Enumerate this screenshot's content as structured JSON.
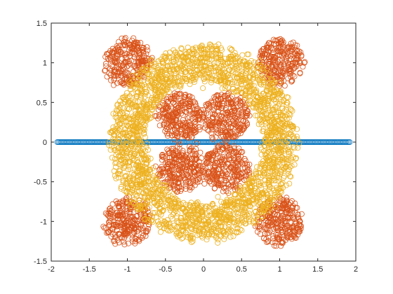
{
  "chart_data": {
    "type": "scatter",
    "title": "",
    "xlabel": "",
    "ylabel": "",
    "xlim": [
      -2,
      2
    ],
    "ylim": [
      -1.5,
      1.5
    ],
    "xticks": [
      -2,
      -1.5,
      -1,
      -0.5,
      0,
      0.5,
      1,
      1.5,
      2
    ],
    "yticks": [
      -1.5,
      -1,
      -0.5,
      0,
      0.5,
      1,
      1.5
    ],
    "xtick_labels": [
      "-2",
      "-1.5",
      "-1",
      "-0.5",
      "0",
      "0.5",
      "1",
      "1.5",
      "2"
    ],
    "ytick_labels": [
      "-1.5",
      "-1",
      "-0.5",
      "0",
      "0.5",
      "1",
      "1.5"
    ],
    "grid": false,
    "legend": "none",
    "marker": "open-circle",
    "series": [
      {
        "color": "#0072BD",
        "shape": "line-segment",
        "x_range": [
          -1.92,
          1.92
        ],
        "y": 0
      },
      {
        "color": "#D95319",
        "shape": "clusters",
        "cluster_centers": [
          [
            -1,
            1
          ],
          [
            1,
            1
          ],
          [
            -1,
            -1
          ],
          [
            1,
            -1
          ],
          [
            -0.3,
            0.33
          ],
          [
            0.3,
            0.33
          ],
          [
            -0.3,
            -0.33
          ],
          [
            0.3,
            -0.33
          ]
        ],
        "cluster_radius": 0.3
      },
      {
        "color": "#EDB120",
        "shape": "ring",
        "center": [
          0,
          0
        ],
        "ring_radius": 1.0,
        "ring_width": 0.45
      }
    ]
  }
}
